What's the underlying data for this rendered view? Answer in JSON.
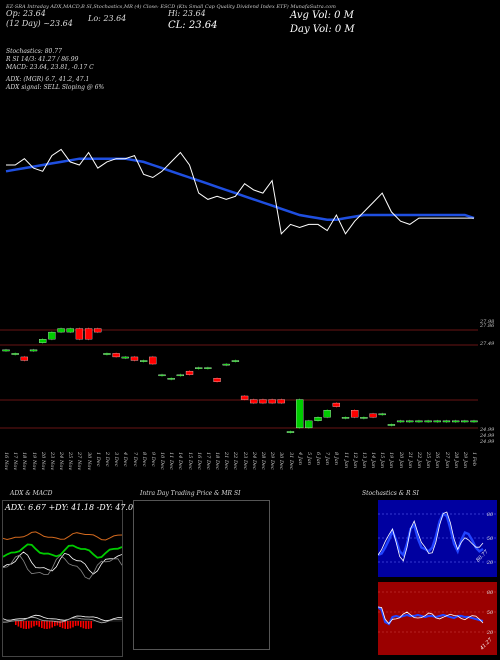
{
  "header": {
    "line1": "EZ-SRA Intraday ADX,MACD,B        SI,Stochastics,MR        (4) Close: ESCD        (Ktx Small Cap Quality Dividend Index ETF) MunafaSutra.com",
    "open_label": "Op: 23.64",
    "high_label": "Hi: 23.64",
    "day_label": "(12  Day) ~23.64",
    "low_label": "Lo: 23.64",
    "close_label": "CL: 23.64",
    "avg_vol_label": "Avg Vol: 0  M",
    "day_vol_label": "Day Vol: 0   M"
  },
  "indicators": {
    "stochastics": "Stochastics: 80.77",
    "rsi_line": "R                    SI 14/3: 41.27 / 86.99",
    "macd": "MACD: 23.64,  23.81, -0.17  C",
    "adx": "ADX:                              (MGR) 6.7,  41.2,  47.1",
    "adx_signal": "ADX  signal: SELL  Sloping @ 6%"
  },
  "price_labels": [
    "27.98",
    "27.86",
    "27.49",
    "24.99",
    "24.99",
    "24.99"
  ],
  "dates": [
    "16 Nov",
    "17 Nov",
    "18 Nov",
    "19 Nov",
    "20 Nov",
    "23 Nov",
    "24 Nov",
    "25 Nov",
    "27 Nov",
    "30 Nov",
    "1 Dec",
    "2 Dec",
    "3 Dec",
    "4 Dec",
    "7 Dec",
    "8 Dec",
    "9 Dec",
    "10 Dec",
    "11 Dec",
    "14 Dec",
    "15 Dec",
    "16 Dec",
    "17 Dec",
    "18 Dec",
    "21 Dec",
    "22 Dec",
    "23 Dec",
    "24 Dec",
    "28 Dec",
    "29 Dec",
    "30 Dec",
    "31 Dec",
    "4 Jan",
    "5 Jan",
    "6 Jan",
    "7 Jan",
    "8 Jan",
    "11 Jan",
    "12 Jan",
    "13 Jan",
    "14 Jan",
    "15 Jan",
    "19 Jan",
    "20 Jan",
    "21 Jan",
    "22 Jan",
    "25 Jan",
    "26 Jan",
    "27 Jan",
    "28 Jan",
    "29 Jan",
    "1 Feb"
  ],
  "panels": {
    "adx_title": "ADX  & MACD",
    "adx_readout": "ADX: 6.67  +DY: 41.18  -DY: 47.06",
    "intraday_title": "Intra  Day Trading Price  & MR                                SI",
    "stoch_title": "Stochastics  & R                         SI",
    "stoch_levels": [
      "80",
      "50",
      "20"
    ],
    "rsi_levels": [
      "80",
      "50",
      "20"
    ],
    "stoch_value": "80.77",
    "rsi_value": "41.27"
  },
  "colors": {
    "up": "#00cc00",
    "down": "#ff0000",
    "doji": "#00cc00",
    "ma": "#1f4fe0",
    "price": "#ffffff",
    "orange": "#d2691e",
    "stoch_bg": "#0000a0",
    "rsi_bg": "#9b0000"
  },
  "chart_data": [
    {
      "type": "line",
      "title": "Close price and moving average",
      "x": [
        "16 Nov",
        "17 Nov",
        "18 Nov",
        "19 Nov",
        "20 Nov",
        "23 Nov",
        "24 Nov",
        "25 Nov",
        "27 Nov",
        "30 Nov",
        "1 Dec",
        "2 Dec",
        "3 Dec",
        "4 Dec",
        "7 Dec",
        "8 Dec",
        "9 Dec",
        "10 Dec",
        "11 Dec",
        "14 Dec",
        "15 Dec",
        "16 Dec",
        "17 Dec",
        "18 Dec",
        "21 Dec",
        "22 Dec",
        "23 Dec",
        "24 Dec",
        "28 Dec",
        "29 Dec",
        "30 Dec",
        "31 Dec",
        "4 Jan",
        "5 Jan",
        "6 Jan",
        "7 Jan",
        "8 Jan",
        "11 Jan",
        "12 Jan",
        "13 Jan",
        "14 Jan",
        "15 Jan",
        "19 Jan",
        "20 Jan",
        "21 Jan",
        "22 Jan",
        "25 Jan",
        "26 Jan",
        "27 Jan",
        "28 Jan",
        "29 Jan",
        "1 Feb"
      ],
      "series": [
        {
          "name": "price",
          "values": [
            26.4,
            26.4,
            26.6,
            26.3,
            26.2,
            26.7,
            26.9,
            26.5,
            26.4,
            26.8,
            26.3,
            26.5,
            26.6,
            26.6,
            26.7,
            26.1,
            26.0,
            26.2,
            26.5,
            26.8,
            26.4,
            25.5,
            25.3,
            25.4,
            25.3,
            25.4,
            25.8,
            25.6,
            25.5,
            25.9,
            24.2,
            24.5,
            24.4,
            24.5,
            24.5,
            24.3,
            24.8,
            24.2,
            24.6,
            24.9,
            25.2,
            25.5,
            24.9,
            24.6,
            24.5,
            24.7,
            24.7,
            24.7,
            24.7,
            24.7,
            24.7,
            24.7
          ]
        },
        {
          "name": "moving average",
          "values": [
            26.2,
            26.25,
            26.3,
            26.35,
            26.4,
            26.45,
            26.5,
            26.55,
            26.6,
            26.6,
            26.6,
            26.6,
            26.6,
            26.6,
            26.55,
            26.5,
            26.4,
            26.3,
            26.2,
            26.1,
            26.0,
            25.9,
            25.8,
            25.7,
            25.6,
            25.5,
            25.4,
            25.3,
            25.2,
            25.1,
            25.0,
            24.9,
            24.8,
            24.75,
            24.7,
            24.65,
            24.65,
            24.7,
            24.75,
            24.8,
            24.8,
            24.8,
            24.8,
            24.8,
            24.8,
            24.8,
            24.8,
            24.8,
            24.8,
            24.8,
            24.8,
            24.7
          ]
        }
      ],
      "ylim": [
        23.5,
        28.0
      ]
    },
    {
      "type": "bar",
      "title": "Candles",
      "categories": [
        "16 Nov",
        "17 Nov",
        "18 Nov",
        "19 Nov",
        "20 Nov",
        "23 Nov",
        "24 Nov",
        "25 Nov",
        "27 Nov",
        "30 Nov",
        "1 Dec",
        "2 Dec",
        "3 Dec",
        "4 Dec",
        "7 Dec",
        "8 Dec",
        "9 Dec",
        "10 Dec",
        "11 Dec",
        "14 Dec",
        "15 Dec",
        "16 Dec",
        "17 Dec",
        "18 Dec",
        "21 Dec",
        "22 Dec",
        "23 Dec",
        "24 Dec",
        "28 Dec",
        "29 Dec",
        "30 Dec",
        "31 Dec",
        "4 Jan",
        "5 Jan",
        "6 Jan",
        "7 Jan",
        "8 Jan",
        "11 Jan",
        "12 Jan",
        "13 Jan",
        "14 Jan",
        "15 Jan",
        "19 Jan",
        "20 Jan",
        "21 Jan",
        "22 Jan",
        "25 Jan",
        "26 Jan",
        "27 Jan",
        "28 Jan",
        "29 Jan",
        "1 Feb"
      ],
      "candles": [
        {
          "o": 27.3,
          "c": 27.3
        },
        {
          "o": 27.2,
          "c": 27.2
        },
        {
          "o": 27.1,
          "c": 27.0
        },
        {
          "o": 27.3,
          "c": 27.3
        },
        {
          "o": 27.5,
          "c": 27.6
        },
        {
          "o": 27.6,
          "c": 27.8
        },
        {
          "o": 27.8,
          "c": 27.9
        },
        {
          "o": 27.8,
          "c": 27.9
        },
        {
          "o": 27.9,
          "c": 27.6
        },
        {
          "o": 27.9,
          "c": 27.6
        },
        {
          "o": 27.9,
          "c": 27.8
        },
        {
          "o": 27.2,
          "c": 27.2
        },
        {
          "o": 27.2,
          "c": 27.1
        },
        {
          "o": 27.1,
          "c": 27.1
        },
        {
          "o": 27.1,
          "c": 27.0
        },
        {
          "o": 27.0,
          "c": 27.0
        },
        {
          "o": 27.1,
          "c": 26.9
        },
        {
          "o": 26.6,
          "c": 26.6
        },
        {
          "o": 26.5,
          "c": 26.5
        },
        {
          "o": 26.6,
          "c": 26.6
        },
        {
          "o": 26.7,
          "c": 26.6
        },
        {
          "o": 26.8,
          "c": 26.8
        },
        {
          "o": 26.8,
          "c": 26.8
        },
        {
          "o": 26.5,
          "c": 26.4
        },
        {
          "o": 26.9,
          "c": 26.9
        },
        {
          "o": 27.0,
          "c": 27.0
        },
        {
          "o": 26.0,
          "c": 25.9
        },
        {
          "o": 25.9,
          "c": 25.8
        },
        {
          "o": 25.9,
          "c": 25.8
        },
        {
          "o": 25.9,
          "c": 25.8
        },
        {
          "o": 25.9,
          "c": 25.8
        },
        {
          "o": 25.0,
          "c": 25.0
        },
        {
          "o": 25.1,
          "c": 25.9
        },
        {
          "o": 25.1,
          "c": 25.3
        },
        {
          "o": 25.3,
          "c": 25.4
        },
        {
          "o": 25.4,
          "c": 25.6
        },
        {
          "o": 25.8,
          "c": 25.7
        },
        {
          "o": 25.4,
          "c": 25.4
        },
        {
          "o": 25.6,
          "c": 25.4
        },
        {
          "o": 25.4,
          "c": 25.4
        },
        {
          "o": 25.5,
          "c": 25.4
        },
        {
          "o": 25.5,
          "c": 25.5
        },
        {
          "o": 25.2,
          "c": 25.2
        },
        {
          "o": 25.3,
          "c": 25.3
        },
        {
          "o": 25.3,
          "c": 25.3
        },
        {
          "o": 25.3,
          "c": 25.3
        },
        {
          "o": 25.3,
          "c": 25.3
        },
        {
          "o": 25.3,
          "c": 25.3
        },
        {
          "o": 25.3,
          "c": 25.3
        },
        {
          "o": 25.3,
          "c": 25.3
        },
        {
          "o": 25.3,
          "c": 25.3
        },
        {
          "o": 25.3,
          "c": 25.3
        }
      ]
    }
  ]
}
